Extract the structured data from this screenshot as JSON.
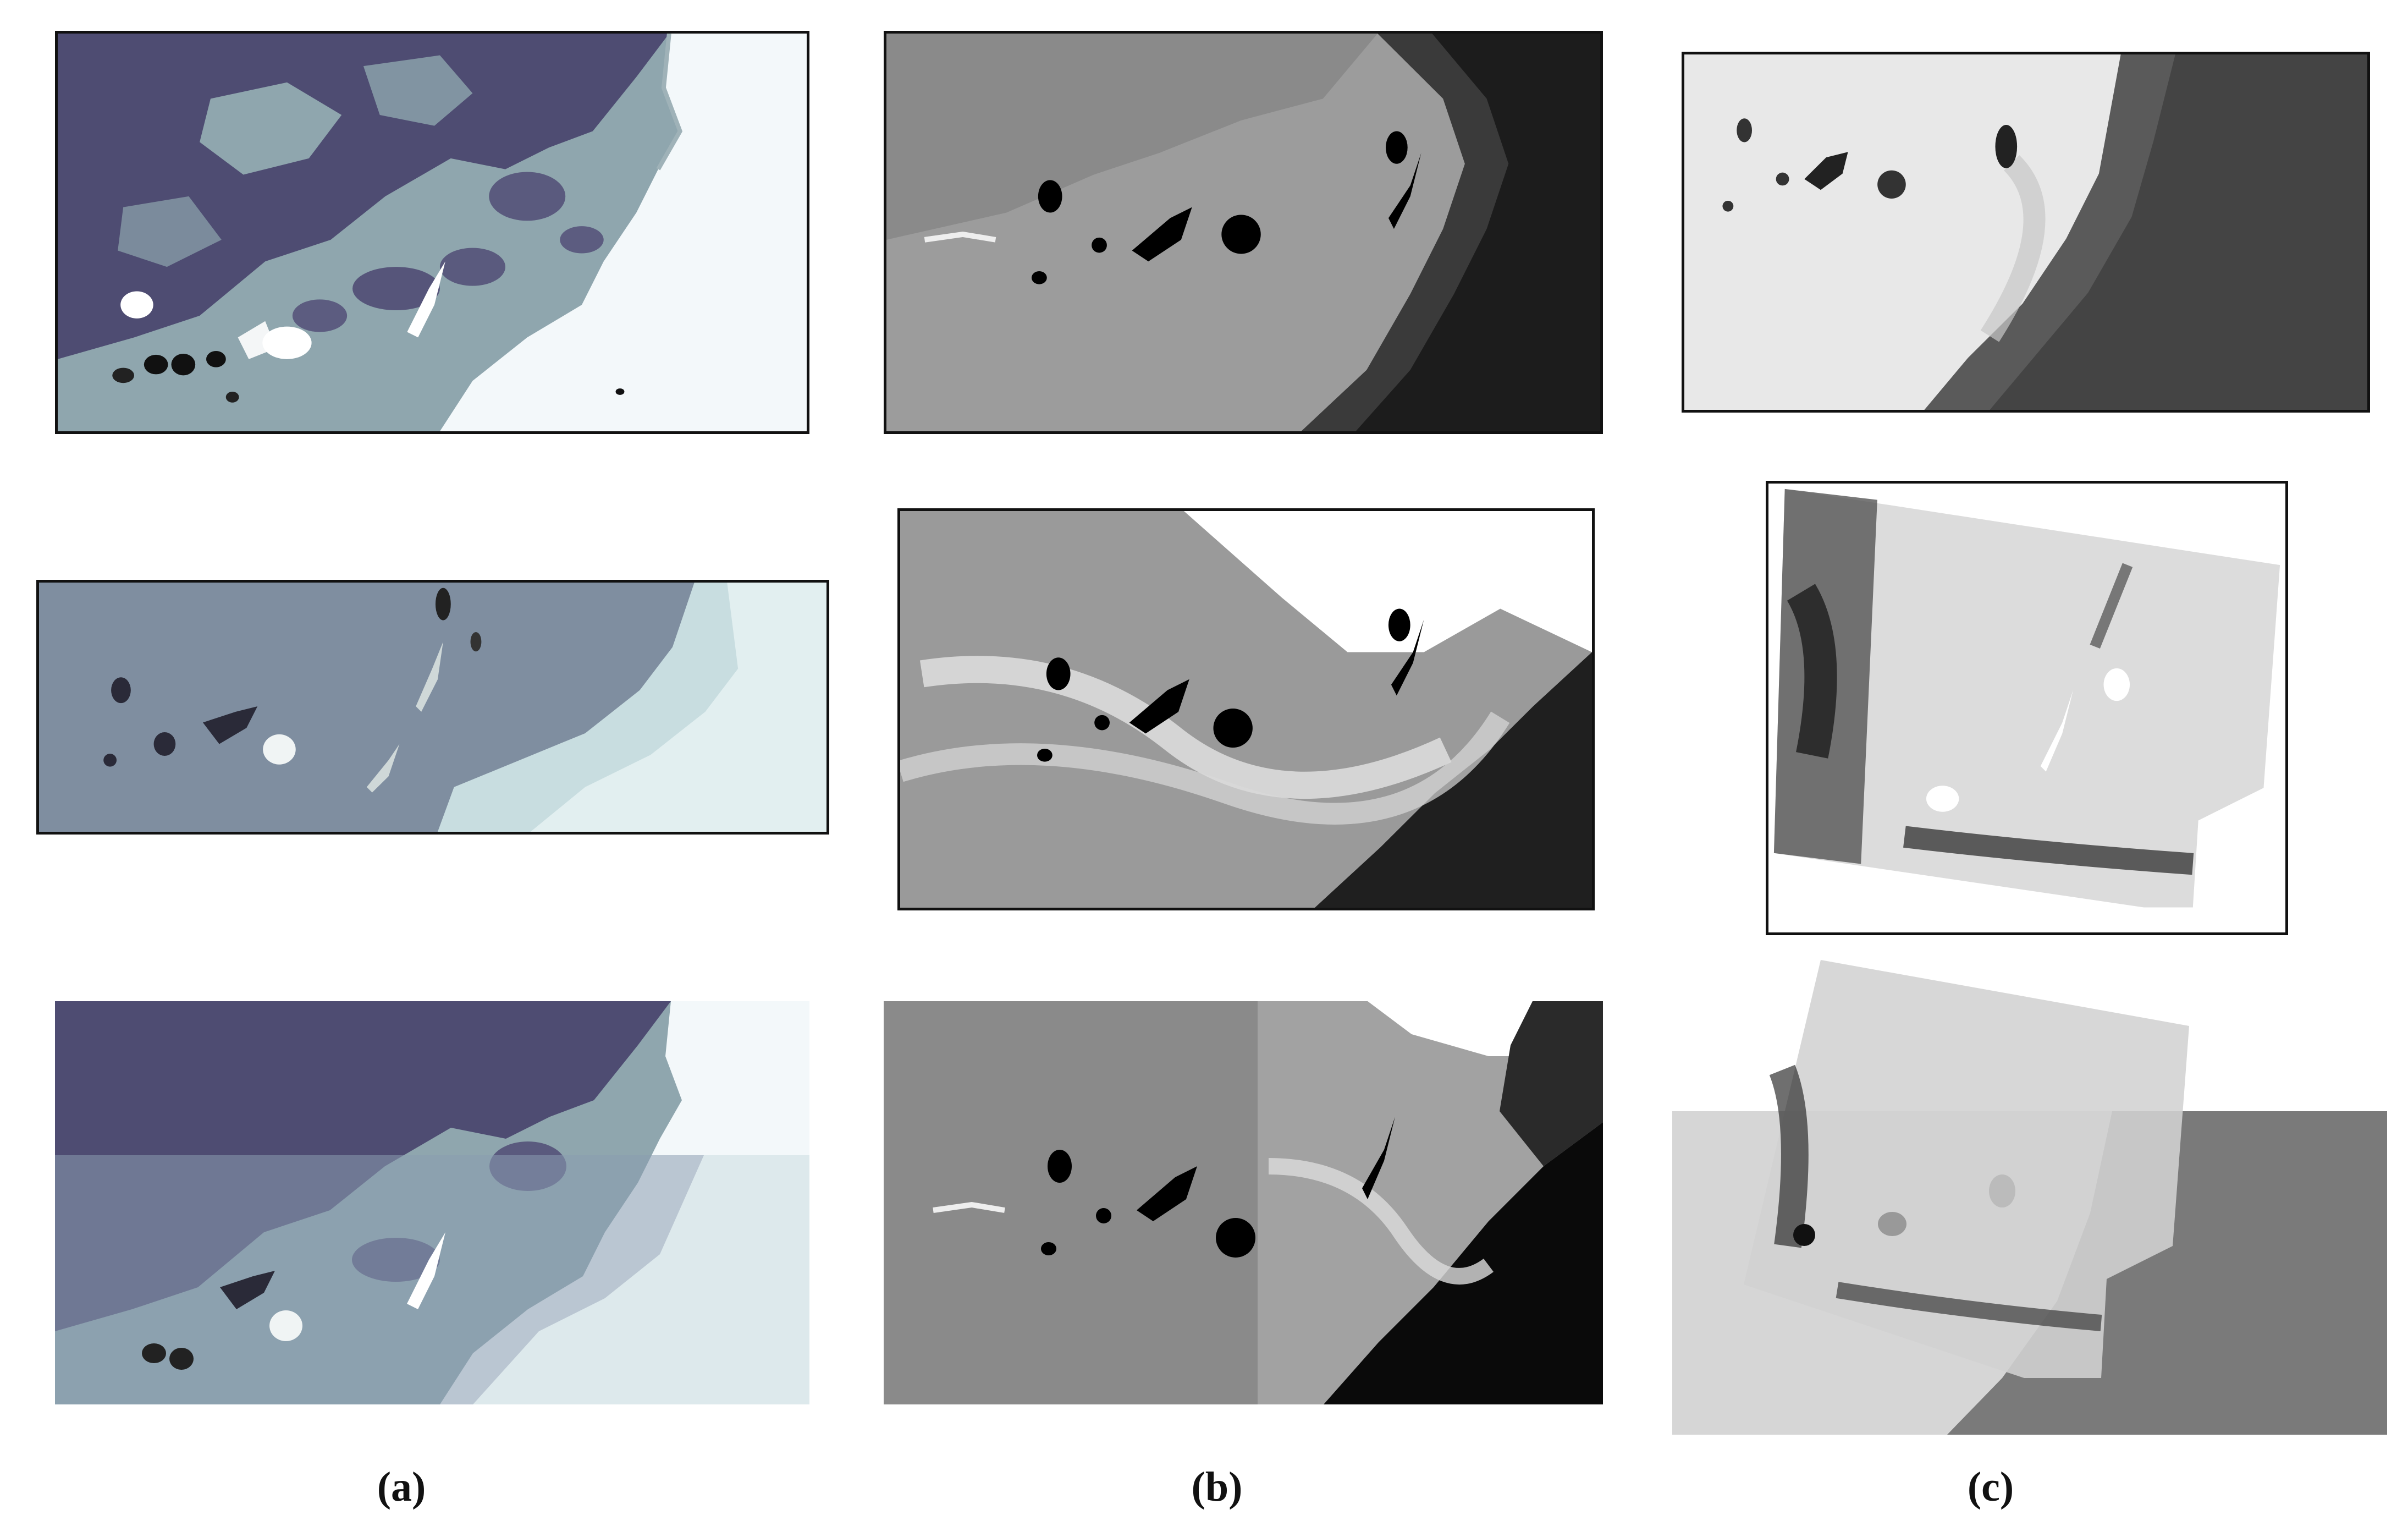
{
  "captions": {
    "a": "(a)",
    "b": "(b)",
    "c": "(c)"
  },
  "palette": {
    "a_dark": "#4a4a6e",
    "a_mid": "#8aa3ab",
    "a_light": "#f4f9fb",
    "b_gray": "#9a9a9a",
    "b_dark": "#1c1c1c",
    "c_light": "#e4e4e4",
    "c_dark": "#4a4a4a"
  }
}
